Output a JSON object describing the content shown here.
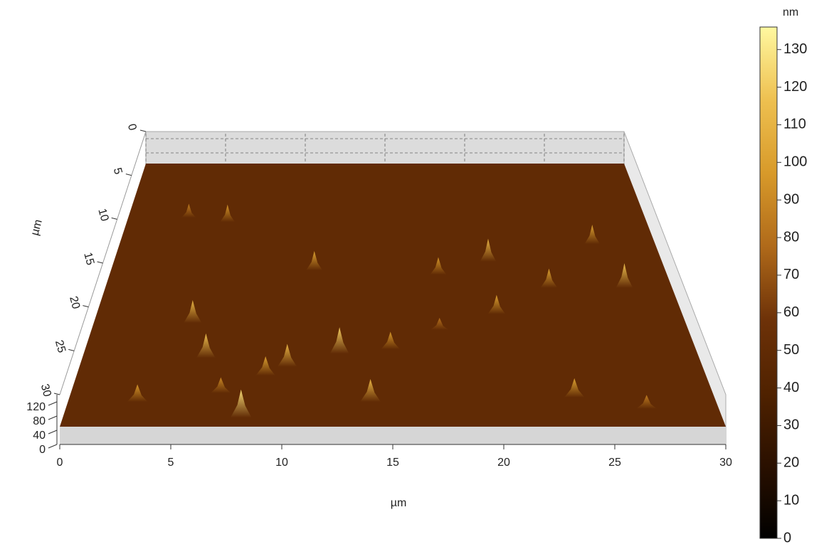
{
  "chart_data": {
    "type": "surface",
    "xlabel": "µm",
    "ylabel": "µm",
    "colorbar_label": "nm",
    "xlim": [
      0,
      30
    ],
    "xticks": [
      0,
      5,
      10,
      15,
      20,
      25,
      30
    ],
    "ylim": [
      0,
      30
    ],
    "yticks": [
      0,
      5,
      10,
      15,
      20,
      25,
      30
    ],
    "zlim": [
      0,
      140
    ],
    "zticks": [
      0,
      40,
      80,
      120
    ],
    "clim": [
      0,
      136
    ],
    "cticks": [
      0,
      10,
      20,
      30,
      40,
      50,
      60,
      70,
      80,
      90,
      100,
      110,
      120,
      130
    ],
    "colormap": [
      "#000000",
      "#2a1000",
      "#502200",
      "#6e3208",
      "#b06a1a",
      "#d89a2a",
      "#eec050",
      "#fff8a0"
    ],
    "surface_level": 50,
    "peaks": [
      {
        "x": 3.5,
        "y": 6,
        "z": 85
      },
      {
        "x": 5.8,
        "y": 6.5,
        "z": 95
      },
      {
        "x": 26.5,
        "y": 9,
        "z": 100
      },
      {
        "x": 20.5,
        "y": 11,
        "z": 110
      },
      {
        "x": 11,
        "y": 12,
        "z": 100
      },
      {
        "x": 17.7,
        "y": 12.5,
        "z": 95
      },
      {
        "x": 23.5,
        "y": 14,
        "z": 100
      },
      {
        "x": 27.5,
        "y": 14,
        "z": 115
      },
      {
        "x": 20.5,
        "y": 17,
        "z": 100
      },
      {
        "x": 5,
        "y": 18,
        "z": 110
      },
      {
        "x": 17.5,
        "y": 18.8,
        "z": 80
      },
      {
        "x": 15,
        "y": 21,
        "z": 95
      },
      {
        "x": 12.5,
        "y": 21.5,
        "z": 120
      },
      {
        "x": 6,
        "y": 22,
        "z": 115
      },
      {
        "x": 10,
        "y": 23,
        "z": 110
      },
      {
        "x": 9,
        "y": 24,
        "z": 100
      },
      {
        "x": 7,
        "y": 26,
        "z": 90
      },
      {
        "x": 23.5,
        "y": 26.5,
        "z": 100
      },
      {
        "x": 14,
        "y": 27,
        "z": 110
      },
      {
        "x": 3.2,
        "y": 27,
        "z": 95
      },
      {
        "x": 26.7,
        "y": 27.8,
        "z": 85
      },
      {
        "x": 8.1,
        "y": 28.8,
        "z": 125
      }
    ]
  }
}
